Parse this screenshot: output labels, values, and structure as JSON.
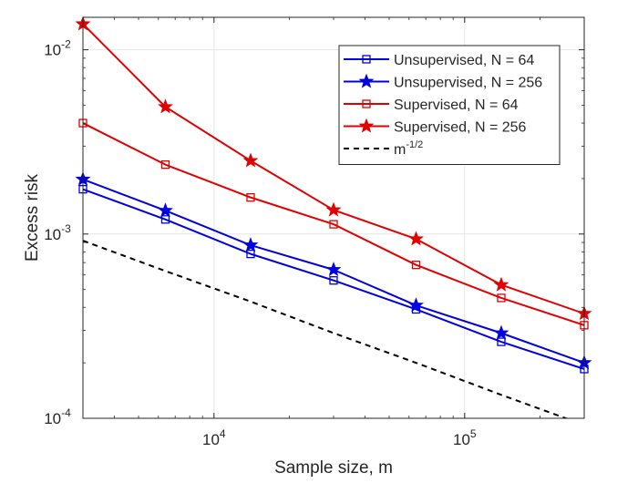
{
  "chart_data": {
    "type": "line",
    "xlabel": "Sample size, m",
    "ylabel": "Excess risk",
    "xscale": "log",
    "yscale": "log",
    "xlim": [
      3000,
      300000
    ],
    "ylim": [
      0.0001,
      0.015
    ],
    "grid": true,
    "legend_position": "top-right",
    "x": [
      3000,
      6400,
      14000,
      30000,
      64000,
      140000,
      300000
    ],
    "x_ticks": [
      {
        "value": 10000,
        "base": "10",
        "exp": "4"
      },
      {
        "value": 100000,
        "base": "10",
        "exp": "5"
      }
    ],
    "y_ticks": [
      {
        "value": 0.0001,
        "base": "10",
        "exp": "-4"
      },
      {
        "value": 0.001,
        "base": "10",
        "exp": "-3"
      },
      {
        "value": 0.01,
        "base": "10",
        "exp": "-2"
      }
    ],
    "series": [
      {
        "name": "Unsupervised, N = 64",
        "color": "#0000e0",
        "marker": "square",
        "line": "solid",
        "values": [
          0.00175,
          0.0012,
          0.00078,
          0.00056,
          0.00039,
          0.00026,
          0.000185
        ]
      },
      {
        "name": "Unsupervised, N = 256",
        "color": "#0000e0",
        "marker": "star",
        "line": "solid",
        "values": [
          0.00198,
          0.00134,
          0.00087,
          0.00064,
          0.00041,
          0.00029,
          0.0002
        ]
      },
      {
        "name": "Supervised, N = 64",
        "color": "#e00000",
        "marker": "square",
        "line": "solid",
        "values": [
          0.004,
          0.00238,
          0.00158,
          0.00113,
          0.00068,
          0.00045,
          0.00032
        ]
      },
      {
        "name": "Supervised, N = 256",
        "color": "#e00000",
        "marker": "star",
        "line": "solid",
        "values": [
          0.0138,
          0.0049,
          0.0025,
          0.00135,
          0.00094,
          0.00053,
          0.00037
        ]
      },
      {
        "name_base": "m",
        "name_exp": "-1/2",
        "color": "#000000",
        "marker": "none",
        "line": "dashed",
        "values": [
          0.00092,
          0.00063,
          0.00043,
          0.00029,
          0.0002,
          0.000134,
          9.2e-05
        ]
      }
    ]
  }
}
